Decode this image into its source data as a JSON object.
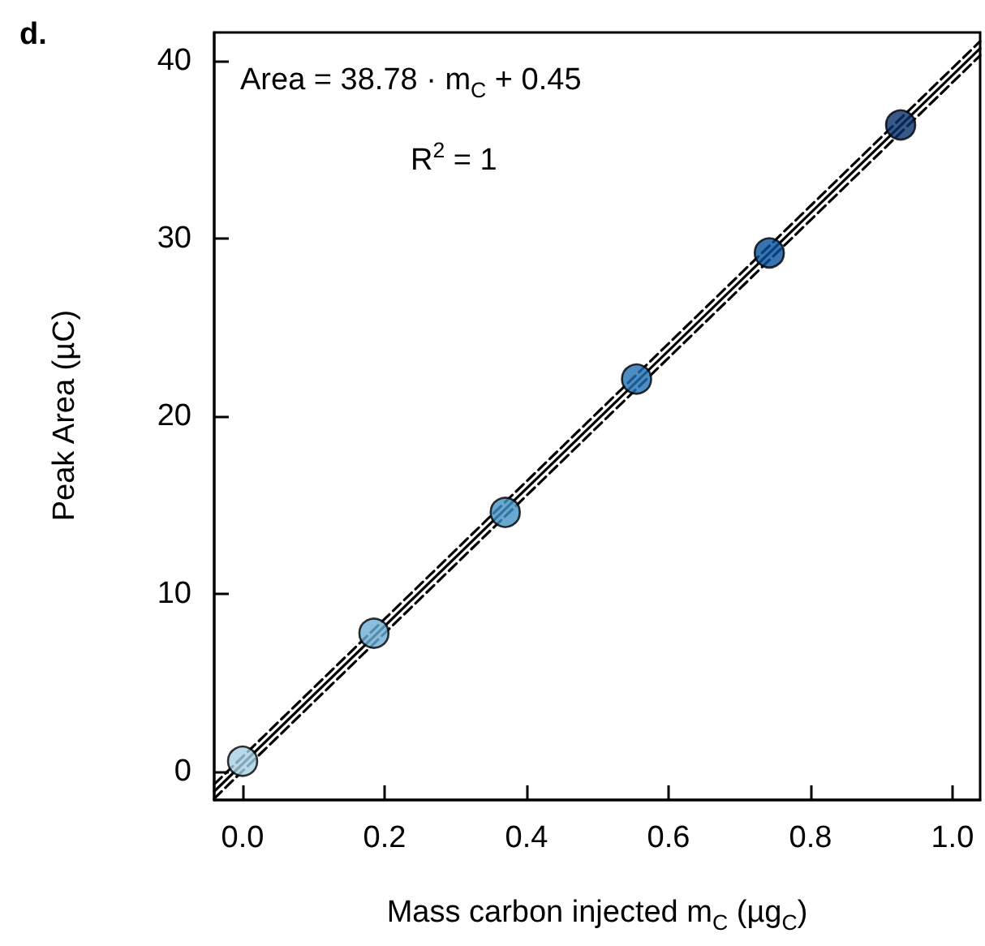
{
  "chart_data": {
    "type": "scatter",
    "annotations": [
      "d.",
      "Area = 38.78 · m$_{C}$ + 0.45",
      "R$^{2}$ = 1"
    ],
    "xlabel": "Mass carbon injected m$_{C}$ (µg$_{C}$)",
    "ylabel": "Peak Area (µC)",
    "series": [
      {
        "type": "line",
        "color": "#000000",
        "x": [
          -0.04,
          1.039
        ],
        "values": [
          -1.1,
          40.7
        ],
        "marker": "none",
        "line_style": "solid"
      },
      {
        "type": "line",
        "color": "#000000",
        "x": [
          -0.04,
          1.039
        ],
        "values": [
          -1.5,
          40.3
        ],
        "marker": "none",
        "line_style": "dashed"
      },
      {
        "type": "line",
        "color": "#000000",
        "x": [
          -0.04,
          1.039
        ],
        "values": [
          -0.7,
          41.1
        ],
        "marker": "none",
        "line_style": "dashed"
      },
      {
        "x": [
          0.0,
          0.185,
          0.37,
          0.555,
          0.742,
          0.927
        ],
        "values": [
          0.6,
          7.8,
          14.6,
          22.1,
          29.2,
          36.4
        ],
        "colors": [
          "#a6cfe5",
          "#6baed6",
          "#4292c6",
          "#2171b5",
          "#08519c",
          "#08306b"
        ],
        "marker": "circle"
      }
    ],
    "xlim": [
      -0.04,
      1.039
    ],
    "xticks": [
      {
        "value": 0,
        "label": "0.0"
      },
      0.2,
      0.4,
      0.6,
      0.8,
      {
        "value": 1,
        "label": "1.0"
      }
    ],
    "ylim": [
      -1.58,
      41.6
    ],
    "yticks": [
      0,
      10,
      20,
      30,
      40
    ],
    "grid": false
  }
}
